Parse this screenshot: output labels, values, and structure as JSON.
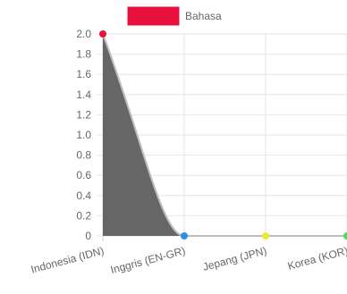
{
  "chart_data": {
    "type": "area",
    "categories": [
      "Indonesia (IDN)",
      "Inggris (EN-GR)",
      "Jepang (JPN)",
      "Korea (KOR)"
    ],
    "series": [
      {
        "name": "Bahasa",
        "values": [
          2,
          0,
          0,
          0
        ],
        "legend_color": "#e8103d",
        "fill_color": "#666666",
        "line_color": "#bdbdbd",
        "point_colors": [
          "#e8103d",
          "#2f8fe0",
          "#eaea3a",
          "#4cd964"
        ]
      }
    ],
    "y_ticks": [
      "0",
      "0.2",
      "0.4",
      "0.6",
      "0.8",
      "1.0",
      "1.2",
      "1.4",
      "1.6",
      "1.8",
      "2.0"
    ],
    "ylim": [
      0,
      2
    ],
    "legend": "top-center",
    "grid": true,
    "title": "",
    "xlabel": "",
    "ylabel": ""
  }
}
